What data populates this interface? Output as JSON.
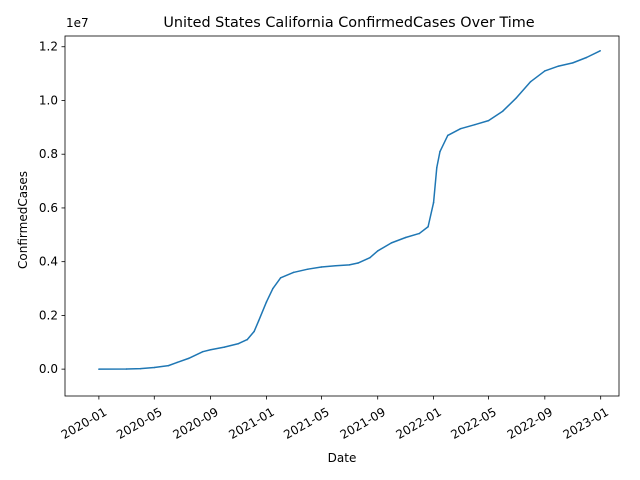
{
  "chart_data": {
    "type": "line",
    "title": "United States California ConfirmedCases Over Time",
    "xlabel": "Date",
    "ylabel": "ConfirmedCases",
    "y_offset_label": "1e7",
    "x_ticks": [
      "2020-01",
      "2020-05",
      "2020-09",
      "2021-01",
      "2021-05",
      "2021-09",
      "2022-01",
      "2022-05",
      "2022-09",
      "2023-01"
    ],
    "y_ticks": [
      "0.0",
      "0.2",
      "0.4",
      "0.6",
      "0.8",
      "1.0",
      "1.2"
    ],
    "xlim": [
      "2019-10-19",
      "2023-02-10"
    ],
    "ylim": [
      -1000000,
      12400000
    ],
    "grid": false,
    "series": [
      {
        "name": "",
        "color": "#1f77b4",
        "x": [
          "2020-01-01",
          "2020-03-01",
          "2020-04-01",
          "2020-05-01",
          "2020-06-01",
          "2020-06-20",
          "2020-07-15",
          "2020-08-15",
          "2020-09-01",
          "2020-10-01",
          "2020-11-01",
          "2020-11-20",
          "2020-12-05",
          "2020-12-15",
          "2021-01-01",
          "2021-01-15",
          "2021-02-01",
          "2021-03-01",
          "2021-04-01",
          "2021-05-01",
          "2021-06-01",
          "2021-07-01",
          "2021-07-20",
          "2021-08-15",
          "2021-09-01",
          "2021-10-01",
          "2021-11-01",
          "2021-12-01",
          "2021-12-20",
          "2022-01-01",
          "2022-01-08",
          "2022-01-15",
          "2022-02-01",
          "2022-03-01",
          "2022-04-01",
          "2022-05-01",
          "2022-06-01",
          "2022-07-01",
          "2022-08-01",
          "2022-09-01",
          "2022-10-01",
          "2022-11-01",
          "2022-12-01",
          "2022-12-31"
        ],
        "y": [
          0,
          5000,
          20000,
          60000,
          130000,
          250000,
          400000,
          650000,
          720000,
          820000,
          950000,
          1100000,
          1400000,
          1800000,
          2500000,
          3000000,
          3400000,
          3600000,
          3720000,
          3800000,
          3850000,
          3880000,
          3950000,
          4150000,
          4400000,
          4700000,
          4900000,
          5050000,
          5300000,
          6200000,
          7500000,
          8100000,
          8700000,
          8950000,
          9100000,
          9250000,
          9600000,
          10100000,
          10700000,
          11100000,
          11280000,
          11400000,
          11600000,
          11850000
        ]
      }
    ]
  }
}
